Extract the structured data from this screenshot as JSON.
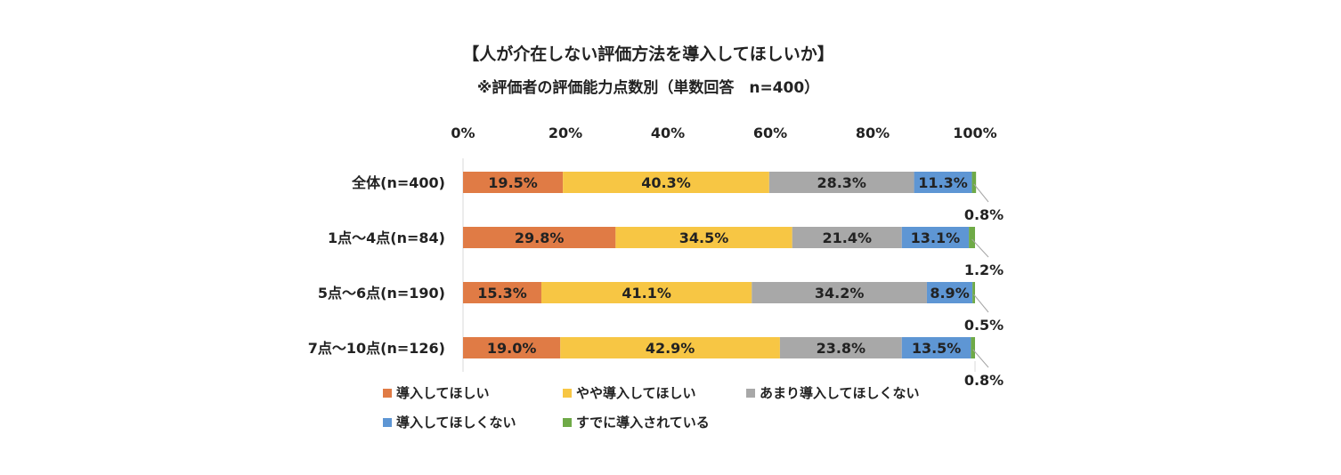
{
  "chart_data": {
    "type": "bar",
    "orientation": "horizontal",
    "stacked": "percent",
    "title": "【人が介在しない評価方法を導入してほしいか】",
    "subtitle": "※評価者の評価能力点数別（単数回答　n=400）",
    "xlim": [
      0,
      100
    ],
    "x_ticks": [
      "0%",
      "20%",
      "40%",
      "60%",
      "80%",
      "100%"
    ],
    "x_tick_values": [
      0,
      20,
      40,
      60,
      80,
      100
    ],
    "xlabel": "",
    "ylabel": "",
    "grid": false,
    "legend_position": "bottom",
    "categories": [
      "全体(n=400)",
      "1点～4点(n=84)",
      "5点～6点(n=190)",
      "7点～10点(n=126)"
    ],
    "series": [
      {
        "name": "導入してほしい",
        "color": "#E07B45",
        "values": [
          19.5,
          29.8,
          15.3,
          19.0
        ],
        "labels": [
          "19.5%",
          "29.8%",
          "15.3%",
          "19.0%"
        ]
      },
      {
        "name": "やや導入してほしい",
        "color": "#F7C644",
        "values": [
          40.3,
          34.5,
          41.1,
          42.9
        ],
        "labels": [
          "40.3%",
          "34.5%",
          "41.1%",
          "42.9%"
        ]
      },
      {
        "name": "あまり導入してほしくない",
        "color": "#A8A8A8",
        "values": [
          28.3,
          21.4,
          34.2,
          23.8
        ],
        "labels": [
          "28.3%",
          "21.4%",
          "34.2%",
          "23.8%"
        ]
      },
      {
        "name": "導入してほしくない",
        "color": "#5E96D4",
        "values": [
          11.3,
          13.1,
          8.9,
          13.5
        ],
        "labels": [
          "11.3%",
          "13.1%",
          "8.9%",
          "13.5%"
        ]
      },
      {
        "name": "すでに導入されている",
        "color": "#6FAA47",
        "values": [
          0.8,
          1.2,
          0.5,
          0.8
        ],
        "labels": [
          "0.8%",
          "1.2%",
          "0.5%",
          "0.8%"
        ]
      }
    ]
  }
}
